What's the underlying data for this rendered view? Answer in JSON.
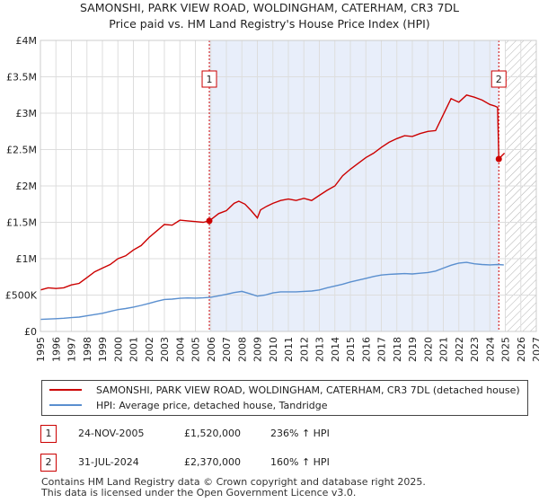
{
  "chart_data": {
    "type": "line",
    "title": "SAMONSHI, PARK VIEW ROAD, WOLDINGHAM, CATERHAM, CR3 7DL",
    "subtitle": "Price paid vs. HM Land Registry's House Price Index (HPI)",
    "xlim": [
      1995,
      2027
    ],
    "ylim": [
      0,
      4000000
    ],
    "x_ticks": [
      "1995",
      "1996",
      "1997",
      "1998",
      "1999",
      "2000",
      "2001",
      "2002",
      "2003",
      "2004",
      "2005",
      "2006",
      "2007",
      "2008",
      "2009",
      "2010",
      "2011",
      "2012",
      "2013",
      "2014",
      "2015",
      "2016",
      "2017",
      "2018",
      "2019",
      "2020",
      "2021",
      "2022",
      "2023",
      "2024",
      "2025",
      "2026",
      "2027"
    ],
    "y_ticks": [
      {
        "value": 0,
        "label": "£0"
      },
      {
        "value": 500000,
        "label": "£500K"
      },
      {
        "value": 1000000,
        "label": "£1M"
      },
      {
        "value": 1500000,
        "label": "£1.5M"
      },
      {
        "value": 2000000,
        "label": "£2M"
      },
      {
        "value": 2500000,
        "label": "£2.5M"
      },
      {
        "value": 3000000,
        "label": "£3M"
      },
      {
        "value": 3500000,
        "label": "£3.5M"
      },
      {
        "value": 4000000,
        "label": "£4M"
      }
    ],
    "shaded_period": [
      2005.9,
      2024.58
    ],
    "future_hatch_from": 2025.0,
    "series": [
      {
        "name": "SAMONSHI, PARK VIEW ROAD, WOLDINGHAM, CATERHAM, CR3 7DL (detached house)",
        "color": "#cc0000",
        "x": [
          1995.0,
          1995.5,
          1996.0,
          1996.5,
          1997.0,
          1997.5,
          1998.0,
          1998.5,
          1999.0,
          1999.5,
          2000.0,
          2000.5,
          2001.0,
          2001.5,
          2002.0,
          2002.5,
          2003.0,
          2003.5,
          2004.0,
          2004.5,
          2005.0,
          2005.5,
          2005.9,
          2006.5,
          2007.0,
          2007.5,
          2007.8,
          2008.2,
          2008.6,
          2009.0,
          2009.2,
          2009.6,
          2010.0,
          2010.5,
          2011.0,
          2011.5,
          2012.0,
          2012.5,
          2013.0,
          2013.5,
          2014.0,
          2014.5,
          2015.0,
          2015.5,
          2016.0,
          2016.5,
          2017.0,
          2017.5,
          2018.0,
          2018.5,
          2019.0,
          2019.5,
          2020.0,
          2020.5,
          2021.0,
          2021.5,
          2022.0,
          2022.5,
          2023.0,
          2023.5,
          2024.0,
          2024.3,
          2024.5,
          2024.58,
          2024.8,
          2024.95
        ],
        "y": [
          570000,
          600000,
          590000,
          600000,
          640000,
          660000,
          740000,
          820000,
          870000,
          920000,
          1000000,
          1040000,
          1120000,
          1180000,
          1290000,
          1380000,
          1470000,
          1460000,
          1530000,
          1520000,
          1510000,
          1500000,
          1520000,
          1620000,
          1660000,
          1760000,
          1790000,
          1750000,
          1660000,
          1560000,
          1670000,
          1720000,
          1760000,
          1800000,
          1820000,
          1800000,
          1830000,
          1800000,
          1870000,
          1940000,
          2000000,
          2140000,
          2230000,
          2310000,
          2390000,
          2450000,
          2530000,
          2600000,
          2650000,
          2690000,
          2680000,
          2720000,
          2750000,
          2760000,
          2980000,
          3200000,
          3150000,
          3250000,
          3220000,
          3180000,
          3120000,
          3100000,
          3080000,
          2370000,
          2420000,
          2450000
        ]
      },
      {
        "name": "HPI: Average price, detached house, Tandridge",
        "color": "#5a8fcf",
        "x": [
          1995.0,
          1995.5,
          1996.0,
          1996.5,
          1997.0,
          1997.5,
          1998.0,
          1998.5,
          1999.0,
          1999.5,
          2000.0,
          2000.5,
          2001.0,
          2001.5,
          2002.0,
          2002.5,
          2003.0,
          2003.5,
          2004.0,
          2004.5,
          2005.0,
          2005.5,
          2006.0,
          2006.5,
          2007.0,
          2007.5,
          2008.0,
          2008.5,
          2009.0,
          2009.5,
          2010.0,
          2010.5,
          2011.0,
          2011.5,
          2012.0,
          2012.5,
          2013.0,
          2013.5,
          2014.0,
          2014.5,
          2015.0,
          2015.5,
          2016.0,
          2016.5,
          2017.0,
          2017.5,
          2018.0,
          2018.5,
          2019.0,
          2019.5,
          2020.0,
          2020.5,
          2021.0,
          2021.5,
          2022.0,
          2022.5,
          2023.0,
          2023.5,
          2024.0,
          2024.5,
          2024.9
        ],
        "y": [
          165000,
          170000,
          175000,
          182000,
          190000,
          198000,
          215000,
          232000,
          250000,
          275000,
          300000,
          315000,
          335000,
          358000,
          385000,
          415000,
          440000,
          445000,
          455000,
          460000,
          458000,
          462000,
          470000,
          490000,
          510000,
          535000,
          550000,
          520000,
          485000,
          500000,
          530000,
          545000,
          545000,
          545000,
          550000,
          555000,
          570000,
          600000,
          625000,
          650000,
          680000,
          705000,
          730000,
          755000,
          775000,
          785000,
          790000,
          795000,
          790000,
          800000,
          810000,
          830000,
          870000,
          910000,
          940000,
          950000,
          930000,
          920000,
          915000,
          920000,
          915000
        ]
      }
    ],
    "sales": [
      {
        "badge": "1",
        "x": 2005.9,
        "y": 1520000
      },
      {
        "badge": "2",
        "x": 2024.58,
        "y": 2370000
      }
    ]
  },
  "legend": {
    "property_label": "SAMONSHI, PARK VIEW ROAD, WOLDINGHAM, CATERHAM, CR3 7DL (detached house)",
    "hpi_label": "HPI: Average price, detached house, Tandridge"
  },
  "transactions": [
    {
      "badge": "1",
      "date": "24-NOV-2005",
      "price": "£1,520,000",
      "hpi": "236% ↑ HPI"
    },
    {
      "badge": "2",
      "date": "31-JUL-2024",
      "price": "£2,370,000",
      "hpi": "160% ↑ HPI"
    }
  ],
  "footer": {
    "line1": "Contains HM Land Registry data © Crown copyright and database right 2025.",
    "line2": "This data is licensed under the Open Government Licence v3.0."
  }
}
